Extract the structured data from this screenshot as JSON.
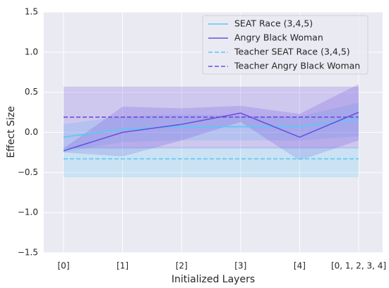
{
  "chart_data": {
    "type": "line",
    "xlabel": "Initialized Layers",
    "ylabel": "Effect Size",
    "categories": [
      "[0]",
      "[1]",
      "[2]",
      "[3]",
      "[4]",
      "[0, 1, 2, 3, 4]"
    ],
    "ylim": [
      -1.5,
      1.5
    ],
    "yticks": [
      {
        "value": -1.5,
        "label": "−1.5"
      },
      {
        "value": -1.0,
        "label": "−1.0"
      },
      {
        "value": -0.5,
        "label": "−0.5"
      },
      {
        "value": 0.0,
        "label": "0.0"
      },
      0.5,
      {
        "value": 1.0,
        "label": "1.0"
      },
      1.5
    ],
    "grid": true,
    "legend": "upper right",
    "series": [
      {
        "name": "SEAT Race (3,4,5)",
        "color": "#5ac8f5",
        "dashed": false,
        "values": [
          -0.06,
          0.04,
          0.07,
          0.07,
          0.07,
          0.17
        ],
        "upper": [
          0.1,
          0.2,
          0.22,
          0.21,
          0.2,
          0.37
        ],
        "lower": [
          -0.25,
          -0.12,
          -0.1,
          -0.1,
          -0.1,
          -0.05
        ]
      },
      {
        "name": "Angry Black Woman",
        "color": "#6c4fe0",
        "dashed": false,
        "values": [
          -0.23,
          0.0,
          0.1,
          0.24,
          -0.06,
          0.25
        ],
        "upper": [
          -0.2,
          0.32,
          0.3,
          0.33,
          0.23,
          0.6
        ],
        "lower": [
          -0.25,
          -0.3,
          -0.1,
          0.13,
          -0.35,
          -0.1
        ]
      },
      {
        "name": "Teacher SEAT Race (3,4,5)",
        "color": "#5ac8f5",
        "dashed": true,
        "values": [
          -0.33,
          -0.33,
          -0.33,
          -0.33,
          -0.33,
          -0.33
        ],
        "upper": [
          -0.18,
          -0.18,
          -0.18,
          -0.18,
          -0.18,
          -0.18
        ],
        "lower": [
          -0.56,
          -0.56,
          -0.56,
          -0.56,
          -0.56,
          -0.56
        ]
      },
      {
        "name": "Teacher Angry Black Woman",
        "color": "#6c4fe0",
        "dashed": true,
        "values": [
          0.19,
          0.19,
          0.19,
          0.19,
          0.19,
          0.19
        ],
        "upper": [
          0.57,
          0.57,
          0.57,
          0.57,
          0.57,
          0.57
        ],
        "lower": [
          -0.2,
          -0.2,
          -0.2,
          -0.2,
          -0.2,
          -0.2
        ]
      }
    ]
  }
}
